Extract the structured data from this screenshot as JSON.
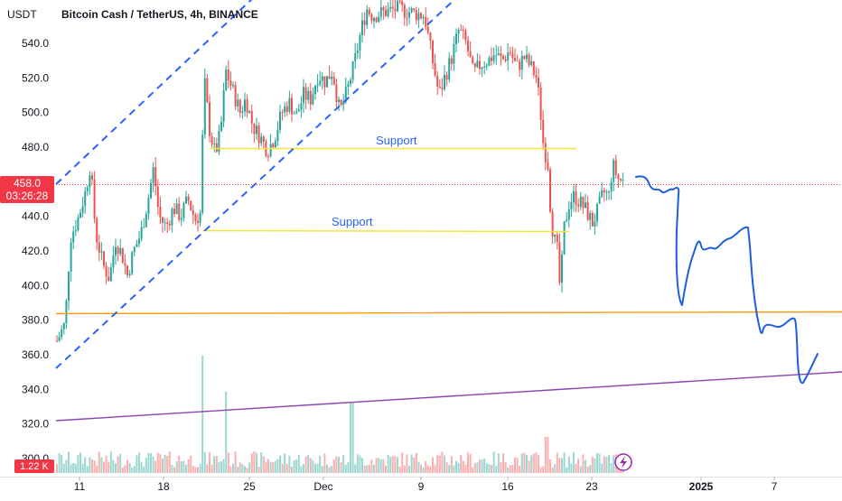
{
  "header": {
    "quote_currency": "USDT",
    "title": "Bitcoin Cash / TetherUS, 4h, BINANCE"
  },
  "price_tag": {
    "price": "458.0",
    "countdown": "03:26:28",
    "color": "#f23645"
  },
  "volume_tag": {
    "value": "1.22 K",
    "color": "#f23645"
  },
  "colors": {
    "up": "#26a69a",
    "down": "#ef5350",
    "trend": "#2962ff",
    "support": "#ffeb3b",
    "orange_level": "#ff9800",
    "purple_trend": "#9c27b0",
    "drawing": "#1e5fe0",
    "axis_text": "#131722"
  },
  "chart_data": {
    "type": "candlestick",
    "symbol": "Bitcoin Cash / TetherUS",
    "interval": "4h",
    "exchange": "BINANCE",
    "ylim": [
      300,
      560
    ],
    "y_ticks": [
      "540.0",
      "520.0",
      "500.0",
      "480.0",
      "460.0",
      "440.0",
      "420.0",
      "400.0",
      "380.0",
      "360.0",
      "340.0",
      "320.0",
      "300.0"
    ],
    "x_ticks": [
      "11",
      "18",
      "25",
      "Dec",
      "9",
      "16",
      "23",
      "2025",
      "7"
    ],
    "x_ticks_bold": [
      "2025"
    ],
    "current_price": 458.0,
    "annotations": [
      {
        "text": "Support",
        "level": 479,
        "from": "Nov 22",
        "to": "Dec 25"
      },
      {
        "text": "Support",
        "level": 432,
        "from": "Nov 20",
        "to": "Dec 23"
      }
    ],
    "horizontal_levels": [
      {
        "name": "orange-level",
        "value": 383
      }
    ],
    "trend_lines": [
      {
        "name": "channel-upper",
        "style": "dashed",
        "from": [
          "Nov 8",
          460
        ],
        "to": [
          "Dec 11",
          580
        ]
      },
      {
        "name": "channel-lower",
        "style": "dashed",
        "from": [
          "Nov 8",
          352
        ],
        "to": [
          "Dec 11",
          562
        ]
      },
      {
        "name": "purple-trend",
        "style": "solid",
        "from": [
          "Nov 8",
          322
        ],
        "to": [
          "Jan 11",
          350
        ]
      }
    ],
    "projection_path": [
      [
        "Dec 26",
        458
      ],
      [
        "Dec 29",
        453
      ],
      [
        "Dec 31",
        454
      ],
      [
        "Jan 1",
        415
      ],
      [
        "Jan 2",
        388
      ],
      [
        "Jan 3",
        410
      ],
      [
        "Jan 4",
        425
      ],
      [
        "Jan 6",
        424
      ],
      [
        "Jan 7",
        428
      ],
      [
        "Jan 8",
        426
      ],
      [
        "Jan 8",
        388
      ],
      [
        "Jan 9",
        372
      ],
      [
        "Jan 10",
        377
      ],
      [
        "Jan 11",
        377
      ],
      [
        "Jan 11",
        345
      ],
      [
        "Jan 12",
        360
      ]
    ],
    "volume_label": "1.22 K"
  }
}
